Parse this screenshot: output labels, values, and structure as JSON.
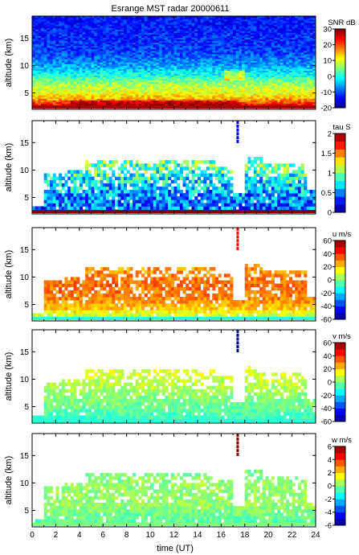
{
  "title": "Esrange MST radar 20000611",
  "xlabel": "time (UT)",
  "colormap": [
    "#00008f",
    "#0000ff",
    "#0080ff",
    "#00ffff",
    "#80ff80",
    "#ffff00",
    "#ff8000",
    "#ff0000",
    "#800000"
  ],
  "chart_data": [
    {
      "type": "heatmap",
      "quantity": "SNR",
      "colorbar_label": "SNR dB",
      "ylabel": "altitude (km)",
      "xlim": [
        0,
        24
      ],
      "ylim": [
        2,
        19
      ],
      "x_ticks": [
        0,
        2,
        4,
        6,
        8,
        10,
        12,
        14,
        16,
        18,
        20,
        22,
        24
      ],
      "y_ticks": [
        5,
        10,
        15
      ],
      "clim": [
        -20,
        30
      ],
      "cbar_ticks": [
        -20,
        -10,
        0,
        10,
        20,
        30
      ],
      "profile": [
        [
          2.2,
          26
        ],
        [
          3,
          22
        ],
        [
          4,
          14
        ],
        [
          5,
          10
        ],
        [
          6,
          8
        ],
        [
          7,
          5
        ],
        [
          8,
          0
        ],
        [
          9,
          -3
        ],
        [
          10,
          -6
        ],
        [
          11,
          -8
        ],
        [
          12,
          -10
        ],
        [
          13,
          -11
        ],
        [
          15,
          -12
        ],
        [
          18,
          -13
        ],
        [
          19,
          -13
        ]
      ],
      "noise": 4
    },
    {
      "type": "heatmap",
      "quantity": "tau",
      "colorbar_label": "tau S",
      "ylabel": "altitude (km)",
      "xlim": [
        0,
        24
      ],
      "ylim": [
        2,
        19
      ],
      "x_ticks": [
        0,
        2,
        4,
        6,
        8,
        10,
        12,
        14,
        16,
        18,
        20,
        22,
        24
      ],
      "y_ticks": [
        5,
        10,
        15
      ],
      "clim": [
        0,
        2
      ],
      "cbar_ticks": [
        0,
        0.5,
        1,
        1.5,
        2
      ],
      "profile": [
        [
          2.5,
          0.45
        ],
        [
          5,
          0.55
        ],
        [
          8,
          0.75
        ],
        [
          10,
          0.9
        ],
        [
          12,
          1.0
        ]
      ],
      "noise": 0.35,
      "bottom_value": 2
    },
    {
      "type": "heatmap",
      "quantity": "u",
      "colorbar_label": "u m/s",
      "ylabel": "altitude (km)",
      "xlim": [
        0,
        24
      ],
      "ylim": [
        2,
        19
      ],
      "x_ticks": [
        0,
        2,
        4,
        6,
        8,
        10,
        12,
        14,
        16,
        18,
        20,
        22,
        24
      ],
      "y_ticks": [
        5,
        10,
        15
      ],
      "clim": [
        -60,
        60
      ],
      "cbar_ticks": [
        -60,
        -40,
        -20,
        0,
        20,
        40,
        60
      ],
      "profile": [
        [
          2.5,
          5
        ],
        [
          4,
          22
        ],
        [
          6,
          30
        ],
        [
          8,
          32
        ],
        [
          10,
          30
        ],
        [
          12,
          25
        ]
      ],
      "noise": 7,
      "bottom_value": -10,
      "spike_value": 45
    },
    {
      "type": "heatmap",
      "quantity": "v",
      "colorbar_label": "v m/s",
      "ylabel": "altitude (km)",
      "xlim": [
        0,
        24
      ],
      "ylim": [
        2,
        19
      ],
      "x_ticks": [
        0,
        2,
        4,
        6,
        8,
        10,
        12,
        14,
        16,
        18,
        20,
        22,
        24
      ],
      "y_ticks": [
        5,
        10,
        15
      ],
      "clim": [
        -60,
        60
      ],
      "cbar_ticks": [
        -60,
        -40,
        -20,
        0,
        20,
        40,
        60
      ],
      "profile": [
        [
          2.5,
          -8
        ],
        [
          5,
          -2
        ],
        [
          8,
          5
        ],
        [
          10,
          10
        ],
        [
          12,
          12
        ]
      ],
      "noise": 6,
      "bottom_value": -10,
      "spike_value": -60
    },
    {
      "type": "heatmap",
      "quantity": "w",
      "colorbar_label": "w m/s",
      "ylabel": "altitude (km)",
      "xlim": [
        0,
        24
      ],
      "ylim": [
        2,
        19
      ],
      "x_ticks": [
        0,
        2,
        4,
        6,
        8,
        10,
        12,
        14,
        16,
        18,
        20,
        22,
        24
      ],
      "y_ticks": [
        5,
        10,
        15
      ],
      "clim": [
        -6,
        6
      ],
      "cbar_ticks": [
        -6,
        -4,
        -2,
        0,
        2,
        4,
        6
      ],
      "profile": [
        [
          2.5,
          -0.5
        ],
        [
          6,
          0.3
        ],
        [
          10,
          0.2
        ],
        [
          12,
          0
        ]
      ],
      "noise": 0.6,
      "bottom_value": 0,
      "spike_value": 6
    }
  ]
}
